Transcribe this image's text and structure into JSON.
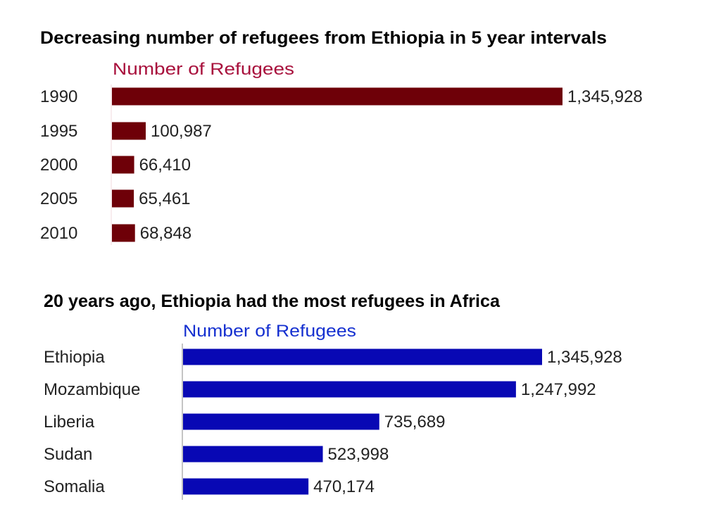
{
  "chart_data": [
    {
      "type": "bar",
      "orientation": "horizontal",
      "title": "Decreasing number of refugees from Ethiopia in 5 year intervals",
      "series_label": "Number of Refugees",
      "categories": [
        "1990",
        "1995",
        "2000",
        "2005",
        "2010"
      ],
      "values": [
        1345928,
        100987,
        66410,
        65461,
        68848
      ],
      "value_labels": [
        "1,345,928",
        "100,987",
        "66,410",
        "65,461",
        "68,848"
      ],
      "bar_color": "#6e0008",
      "label_color": "#a8103c",
      "grid": false
    },
    {
      "type": "bar",
      "orientation": "horizontal",
      "title": "20 years ago, Ethiopia had the most refugees in Africa",
      "series_label": "Number of Refugees",
      "categories": [
        "Ethiopia",
        "Mozambique",
        "Liberia",
        "Sudan",
        "Somalia"
      ],
      "values": [
        1345928,
        1247992,
        735689,
        523998,
        470174
      ],
      "value_labels": [
        "1,345,928",
        "1,247,992",
        "735,689",
        "523,998",
        "470,174"
      ],
      "bar_color": "#0808b4",
      "label_color": "#1530d0",
      "grid": false
    }
  ]
}
